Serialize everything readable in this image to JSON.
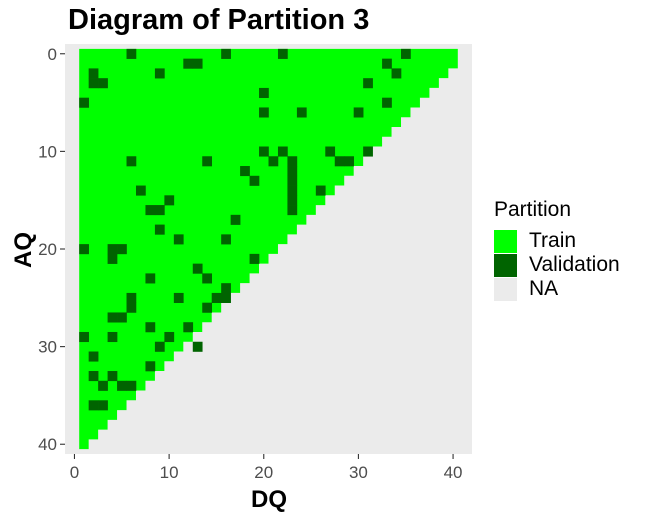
{
  "chart_data": {
    "type": "heatmap",
    "title": "Diagram of Partition 3",
    "xlabel": "DQ",
    "ylabel": "AQ",
    "xlim": [
      -1,
      42
    ],
    "ylim": [
      41,
      -1
    ],
    "x_ticks": [
      0,
      10,
      20,
      30,
      40
    ],
    "y_ticks": [
      0,
      10,
      20,
      30,
      40
    ],
    "background_color": "#EBEBEB",
    "grid": false,
    "region_rule": "cells with DQ >= 1 and AQ + DQ <= 41 are Partition Train unless listed in validation_cells",
    "legend": {
      "title": "Partition",
      "placement": "right",
      "items": [
        {
          "label": "Train",
          "color": "#00FF00"
        },
        {
          "label": "Validation",
          "color": "#006400"
        },
        {
          "label": "NA",
          "color": "#EBEBEB"
        }
      ]
    },
    "validation_cells": [
      [
        6,
        0
      ],
      [
        16,
        0
      ],
      [
        22,
        0
      ],
      [
        35,
        0
      ],
      [
        12,
        1
      ],
      [
        13,
        1
      ],
      [
        33,
        1
      ],
      [
        2,
        2
      ],
      [
        9,
        2
      ],
      [
        34,
        2
      ],
      [
        2,
        3
      ],
      [
        3,
        3
      ],
      [
        31,
        3
      ],
      [
        20,
        4
      ],
      [
        1,
        5
      ],
      [
        33,
        5
      ],
      [
        20,
        6
      ],
      [
        24,
        6
      ],
      [
        30,
        6
      ],
      [
        20,
        10
      ],
      [
        22,
        10
      ],
      [
        27,
        10
      ],
      [
        31,
        10
      ],
      [
        6,
        11
      ],
      [
        14,
        11
      ],
      [
        21,
        11
      ],
      [
        23,
        11
      ],
      [
        28,
        11
      ],
      [
        29,
        11
      ],
      [
        18,
        12
      ],
      [
        23,
        12
      ],
      [
        23,
        13
      ],
      [
        19,
        13
      ],
      [
        23,
        14
      ],
      [
        26,
        14
      ],
      [
        7,
        14
      ],
      [
        23,
        15
      ],
      [
        10,
        15
      ],
      [
        8,
        16
      ],
      [
        9,
        16
      ],
      [
        23,
        16
      ],
      [
        17,
        17
      ],
      [
        9,
        18
      ],
      [
        11,
        19
      ],
      [
        16,
        19
      ],
      [
        1,
        20
      ],
      [
        4,
        20
      ],
      [
        5,
        20
      ],
      [
        4,
        21
      ],
      [
        19,
        21
      ],
      [
        13,
        22
      ],
      [
        14,
        23
      ],
      [
        8,
        23
      ],
      [
        16,
        24
      ],
      [
        6,
        25
      ],
      [
        11,
        25
      ],
      [
        16,
        25
      ],
      [
        15,
        25
      ],
      [
        6,
        26
      ],
      [
        14,
        26
      ],
      [
        4,
        27
      ],
      [
        5,
        27
      ],
      [
        8,
        28
      ],
      [
        12,
        28
      ],
      [
        1,
        29
      ],
      [
        4,
        29
      ],
      [
        10,
        29
      ],
      [
        9,
        30
      ],
      [
        13,
        30
      ],
      [
        2,
        31
      ],
      [
        8,
        32
      ],
      [
        2,
        33
      ],
      [
        4,
        33
      ],
      [
        3,
        34
      ],
      [
        5,
        34
      ],
      [
        6,
        34
      ],
      [
        2,
        36
      ],
      [
        3,
        36
      ]
    ]
  }
}
